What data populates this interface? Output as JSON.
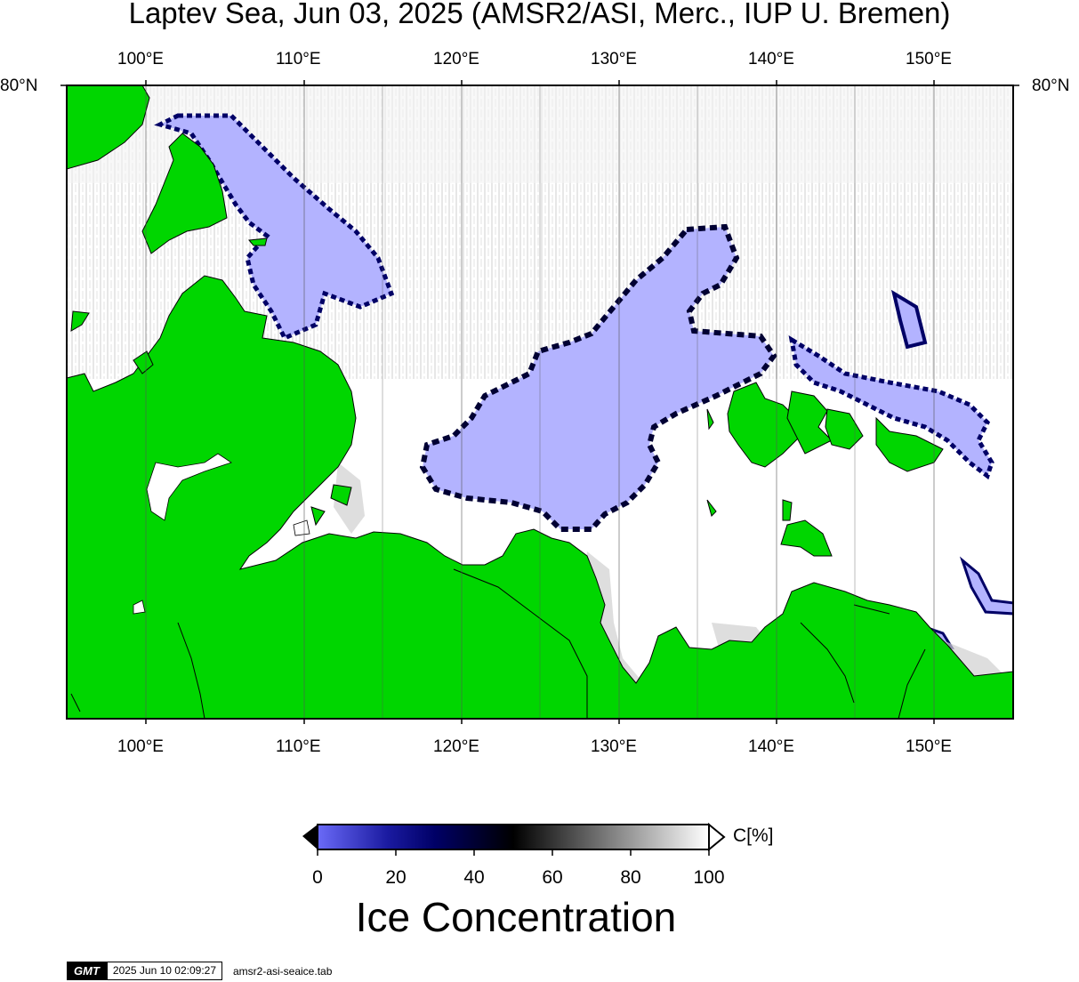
{
  "title": "Laptev Sea, Jun 03, 2025 (AMSR2/ASI, Merc., IUP U. Bremen)",
  "map": {
    "projection": "Mercator",
    "lon_range": [
      95,
      155
    ],
    "lat_top_label": "80°N",
    "lon_labels": [
      "100°E",
      "110°E",
      "120°E",
      "130°E",
      "140°E",
      "150°E"
    ],
    "gridlines": true,
    "land_color": "#00d600",
    "open_water_color": "#ffffff",
    "ice_color": "#b3b3ff"
  },
  "colorbar": {
    "title": "Ice Concentration",
    "unit": "C[%]",
    "ticks": [
      "0",
      "20",
      "40",
      "60",
      "80",
      "100"
    ],
    "range": [
      0,
      100
    ],
    "colors": [
      "#6a6af7",
      "#000066",
      "#000000",
      "#808080",
      "#ffffff"
    ]
  },
  "footer": {
    "logo": "GMT",
    "timestamp": "2025 Jun 10 02:09:27",
    "command": "amsr2-asi-seaice.tab"
  }
}
